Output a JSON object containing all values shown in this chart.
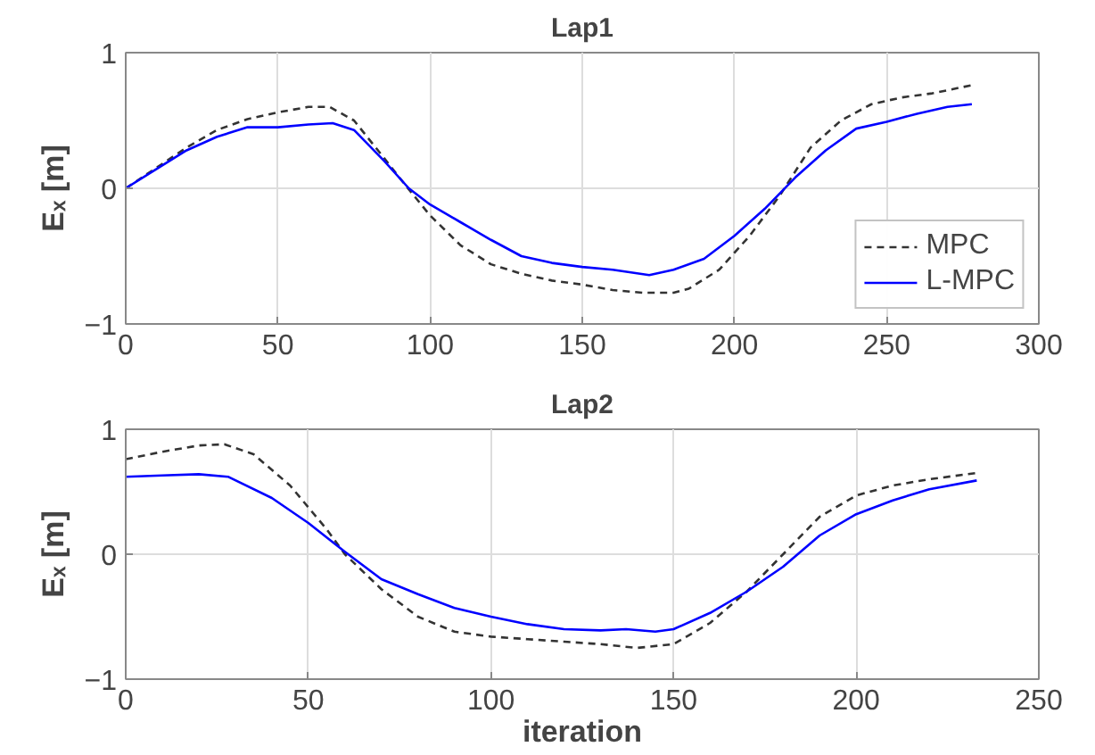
{
  "chart_data": [
    {
      "type": "line",
      "title": "Lap1",
      "ylabel": "Eₓ [m]",
      "xlim": [
        0,
        300
      ],
      "xticks": [
        0,
        50,
        100,
        150,
        200,
        250,
        300
      ],
      "ylim": [
        -1,
        1
      ],
      "yticks": [
        -1,
        0,
        1
      ],
      "grid": true,
      "legend": "bottom right",
      "series": [
        {
          "name": "MPC",
          "color": "#333333",
          "line_style": "dashed",
          "x": [
            0,
            10,
            20,
            30,
            40,
            50,
            60,
            67,
            75,
            85,
            92,
            100,
            110,
            120,
            130,
            140,
            150,
            160,
            170,
            180,
            185,
            195,
            205,
            215,
            225,
            235,
            245,
            255,
            265,
            278
          ],
          "values": [
            0,
            0.15,
            0.3,
            0.43,
            0.51,
            0.56,
            0.6,
            0.6,
            0.5,
            0.22,
            0.02,
            -0.2,
            -0.42,
            -0.56,
            -0.63,
            -0.68,
            -0.71,
            -0.75,
            -0.77,
            -0.77,
            -0.74,
            -0.6,
            -0.35,
            -0.05,
            0.3,
            0.5,
            0.62,
            0.67,
            0.7,
            0.76
          ]
        },
        {
          "name": "L-MPC",
          "color": "#0000ff",
          "line_style": "solid",
          "x": [
            0,
            10,
            20,
            30,
            40,
            50,
            60,
            68,
            75,
            85,
            93,
            100,
            110,
            120,
            130,
            140,
            150,
            160,
            172,
            180,
            190,
            200,
            210,
            220,
            230,
            240,
            250,
            260,
            270,
            278
          ],
          "values": [
            0,
            0.14,
            0.28,
            0.38,
            0.45,
            0.45,
            0.47,
            0.48,
            0.43,
            0.2,
            0,
            -0.12,
            -0.25,
            -0.38,
            -0.5,
            -0.55,
            -0.58,
            -0.6,
            -0.64,
            -0.6,
            -0.52,
            -0.35,
            -0.15,
            0.08,
            0.28,
            0.44,
            0.49,
            0.55,
            0.6,
            0.62
          ]
        }
      ]
    },
    {
      "type": "line",
      "title": "Lap2",
      "xlabel": "iteration",
      "ylabel": "Eₓ [m]",
      "xlim": [
        0,
        250
      ],
      "xticks": [
        0,
        50,
        100,
        150,
        200,
        250
      ],
      "ylim": [
        -1,
        1
      ],
      "yticks": [
        -1,
        0,
        1
      ],
      "grid": true,
      "series": [
        {
          "color": "#333333",
          "line_style": "dashed",
          "x": [
            0,
            10,
            20,
            27,
            35,
            45,
            55,
            60,
            70,
            80,
            90,
            100,
            110,
            120,
            130,
            140,
            150,
            160,
            170,
            180,
            190,
            200,
            210,
            220,
            233
          ],
          "values": [
            0.76,
            0.82,
            0.87,
            0.88,
            0.8,
            0.55,
            0.2,
            0,
            -0.28,
            -0.5,
            -0.62,
            -0.66,
            -0.68,
            -0.7,
            -0.72,
            -0.75,
            -0.72,
            -0.55,
            -0.3,
            0,
            0.3,
            0.47,
            0.55,
            0.6,
            0.65
          ]
        },
        {
          "color": "#0000ff",
          "line_style": "solid",
          "x": [
            0,
            10,
            20,
            28,
            40,
            50,
            60,
            70,
            80,
            90,
            100,
            110,
            120,
            130,
            137,
            145,
            150,
            160,
            170,
            180,
            190,
            200,
            210,
            220,
            233
          ],
          "values": [
            0.62,
            0.63,
            0.64,
            0.62,
            0.45,
            0.25,
            0.02,
            -0.2,
            -0.32,
            -0.43,
            -0.5,
            -0.56,
            -0.6,
            -0.61,
            -0.6,
            -0.62,
            -0.6,
            -0.47,
            -0.3,
            -0.1,
            0.15,
            0.32,
            0.43,
            0.52,
            0.59
          ]
        }
      ]
    }
  ]
}
